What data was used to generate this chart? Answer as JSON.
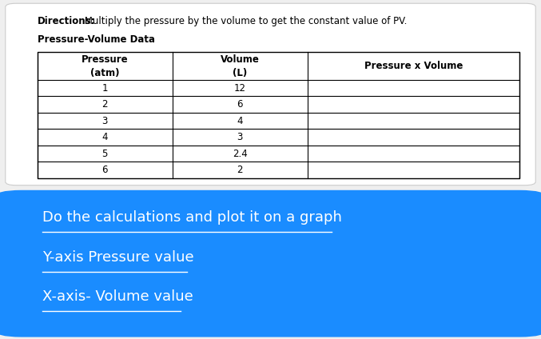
{
  "directions_label": "Directions:",
  "directions_text": " Multiply the pressure by the volume to get the constant value of PV.",
  "table_title": "Pressure-Volume Data",
  "pressure": [
    1,
    2,
    3,
    4,
    5,
    6
  ],
  "volume": [
    12,
    6,
    4,
    3,
    2.4,
    2
  ],
  "bg_color": "#efefef",
  "table_bg": "#ffffff",
  "blue_box_color": "#1a8cff",
  "blue_text_color": "#ffffff",
  "blue_box_text": [
    "Do the calculations and plot it on a graph",
    "Y-axis Pressure value",
    "X-axis- Volume value"
  ],
  "directions_font_size": 8.5,
  "title_font_size": 8.5,
  "header_font_size": 8.5,
  "body_font_size": 8.5,
  "blue_font_size": 13
}
